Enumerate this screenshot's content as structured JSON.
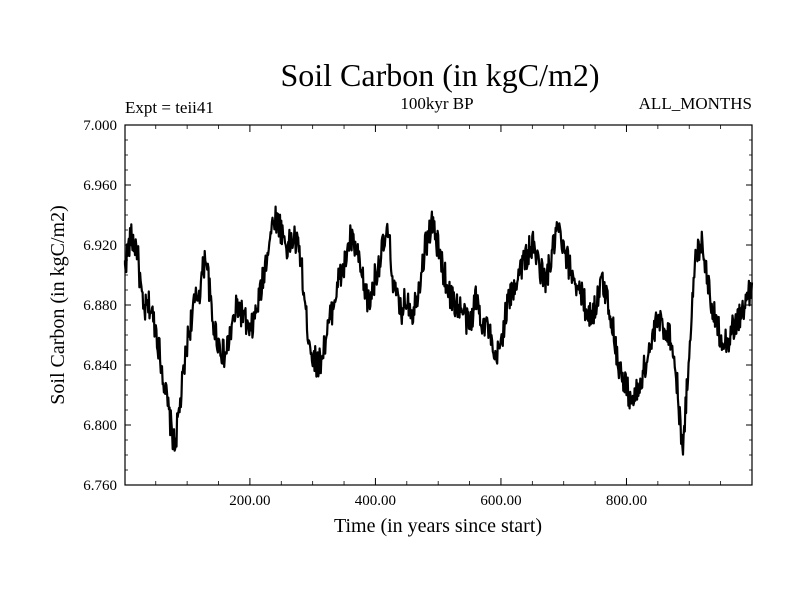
{
  "chart_data": {
    "type": "line",
    "title": "Soil Carbon (in kgC/m2)",
    "left_note": "Expt = teii41",
    "center_note": "100kyr BP",
    "right_note": "ALL_MONTHS",
    "xlabel": "Time (in years since start)",
    "ylabel": "Soil Carbon (in kgC/m2)",
    "xlim": [
      1,
      1000
    ],
    "ylim": [
      6.76,
      7.0
    ],
    "x_ticks": [
      200,
      400,
      600,
      800
    ],
    "x_tick_labels": [
      "200.00",
      "400.00",
      "600.00",
      "800.00"
    ],
    "y_ticks": [
      6.76,
      6.8,
      6.84,
      6.88,
      6.92,
      6.96,
      7.0
    ],
    "y_tick_labels": [
      "6.760",
      "6.800",
      "6.840",
      "6.880",
      "6.920",
      "6.960",
      "7.000"
    ],
    "grid": false,
    "line_color": "#000000",
    "series": [
      {
        "x": [
          0,
          10,
          20,
          30,
          40,
          50,
          60,
          70,
          80,
          90,
          100,
          110,
          120,
          130,
          140,
          150,
          160,
          170,
          180,
          190,
          200,
          210,
          220,
          230,
          240,
          250,
          260,
          270,
          280,
          290,
          300,
          310,
          320,
          330,
          340,
          350,
          360,
          370,
          380,
          390,
          400,
          410,
          420,
          430,
          440,
          450,
          460,
          470,
          480,
          490,
          500,
          510,
          520,
          530,
          540,
          550,
          560,
          570,
          580,
          590,
          600,
          610,
          620,
          630,
          640,
          650,
          660,
          670,
          680,
          690,
          700,
          710,
          720,
          730,
          740,
          750,
          760,
          770,
          780,
          790,
          800,
          810,
          820,
          830,
          840,
          850,
          860,
          870,
          880,
          890,
          900,
          910,
          920,
          930,
          940,
          950,
          960,
          970,
          980,
          990,
          1000
        ],
        "values": [
          6.905,
          6.925,
          6.918,
          6.875,
          6.88,
          6.865,
          6.838,
          6.81,
          6.785,
          6.818,
          6.855,
          6.878,
          6.89,
          6.915,
          6.87,
          6.855,
          6.845,
          6.862,
          6.88,
          6.872,
          6.86,
          6.875,
          6.895,
          6.922,
          6.94,
          6.93,
          6.918,
          6.925,
          6.915,
          6.87,
          6.845,
          6.84,
          6.855,
          6.875,
          6.895,
          6.905,
          6.925,
          6.915,
          6.895,
          6.88,
          6.9,
          6.915,
          6.928,
          6.89,
          6.875,
          6.885,
          6.875,
          6.895,
          6.92,
          6.935,
          6.918,
          6.9,
          6.885,
          6.88,
          6.875,
          6.865,
          6.885,
          6.87,
          6.865,
          6.84,
          6.855,
          6.88,
          6.89,
          6.905,
          6.912,
          6.92,
          6.908,
          6.895,
          6.91,
          6.932,
          6.915,
          6.905,
          6.895,
          6.885,
          6.872,
          6.878,
          6.895,
          6.885,
          6.86,
          6.835,
          6.825,
          6.815,
          6.825,
          6.84,
          6.855,
          6.87,
          6.865,
          6.86,
          6.83,
          6.78,
          6.852,
          6.91,
          6.925,
          6.895,
          6.872,
          6.86,
          6.855,
          6.865,
          6.872,
          6.88,
          6.895
        ]
      }
    ]
  }
}
